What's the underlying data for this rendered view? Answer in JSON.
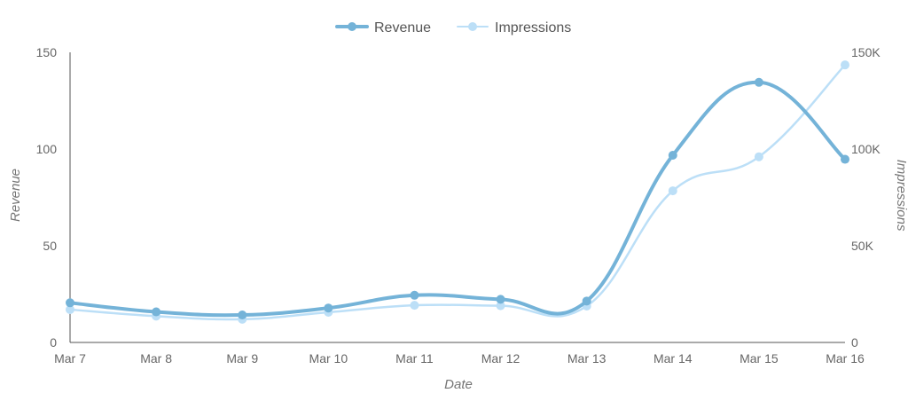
{
  "chart_data": {
    "type": "line",
    "title": "",
    "xlabel": "Date",
    "ylabel": "Revenue",
    "y2label": "Impressions",
    "categories": [
      "Mar 7",
      "Mar 8",
      "Mar 9",
      "Mar 10",
      "Mar 11",
      "Mar 12",
      "Mar 13",
      "Mar 14",
      "Mar 15",
      "Mar 16"
    ],
    "ylim": [
      0,
      150
    ],
    "y2lim": [
      0,
      150000
    ],
    "yticks": [
      "0",
      "50",
      "100",
      "150"
    ],
    "y2ticks": [
      "0",
      "50K",
      "100K",
      "150K"
    ],
    "grid": false,
    "legend_position": "top-center",
    "series": [
      {
        "name": "Revenue",
        "axis": "left",
        "color": "#74b3d8",
        "values": [
          20.5,
          15.8,
          14.2,
          17.8,
          24.4,
          22.3,
          21.4,
          96.8,
          134.5,
          94.7
        ]
      },
      {
        "name": "Impressions",
        "axis": "right",
        "color": "#bcdff7",
        "values": [
          17000,
          13600,
          12000,
          15600,
          19200,
          19000,
          18800,
          78400,
          96000,
          143500
        ]
      }
    ]
  }
}
